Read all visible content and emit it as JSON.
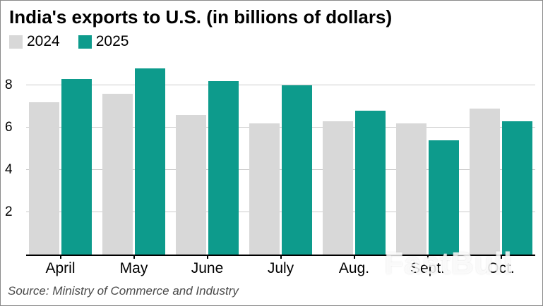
{
  "title": "India's exports to U.S. (in billions of dollars)",
  "legend": [
    {
      "label": "2024",
      "color": "#d8d8d8"
    },
    {
      "label": "2025",
      "color": "#0d9b8c"
    }
  ],
  "source": "Source: Ministry of Commerce and Industry",
  "watermark": "FastBull",
  "chart_data": {
    "type": "bar",
    "title": "India's exports to U.S. (in billions of dollars)",
    "categories": [
      "April",
      "May",
      "June",
      "July",
      "Aug.",
      "Sept.",
      "Oct."
    ],
    "series": [
      {
        "name": "2024",
        "color": "#d8d8d8",
        "values": [
          7.2,
          7.6,
          6.6,
          6.2,
          6.3,
          6.2,
          6.9
        ]
      },
      {
        "name": "2025",
        "color": "#0d9b8c",
        "values": [
          8.3,
          8.8,
          8.2,
          8.0,
          6.8,
          5.4,
          6.3
        ]
      }
    ],
    "xlabel": "",
    "ylabel": "",
    "ylim": [
      0,
      9
    ],
    "yticks": [
      2,
      4,
      6,
      8
    ],
    "grid": true,
    "legend_position": "top-left"
  }
}
